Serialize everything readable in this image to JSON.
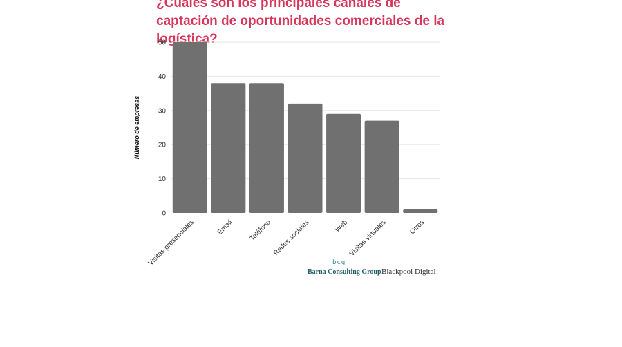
{
  "chart_data": {
    "type": "bar",
    "title": "¿Cuáles son los principales canales de captación de oportunidades comerciales de la logística?",
    "ylabel": "Número de empresas",
    "xlabel": "",
    "categories": [
      "Visitas presenciales",
      "Email",
      "Teléfono",
      "Redes sociales",
      "Web",
      "Visitas virtuales",
      "Otros"
    ],
    "values": [
      50,
      38,
      38,
      32,
      29,
      27,
      1
    ],
    "ylim": [
      0,
      50
    ],
    "yticks": [
      0,
      10,
      20,
      30,
      40,
      50
    ],
    "bar_color": "#707070",
    "grid": true,
    "legend": "none"
  },
  "logos": {
    "bcg_mark": "bcg",
    "bcg_name": "Barna Consulting Group",
    "bd_name": "Blackpool Digital"
  },
  "colors": {
    "title": "#d6365a",
    "bars": "#707070"
  }
}
